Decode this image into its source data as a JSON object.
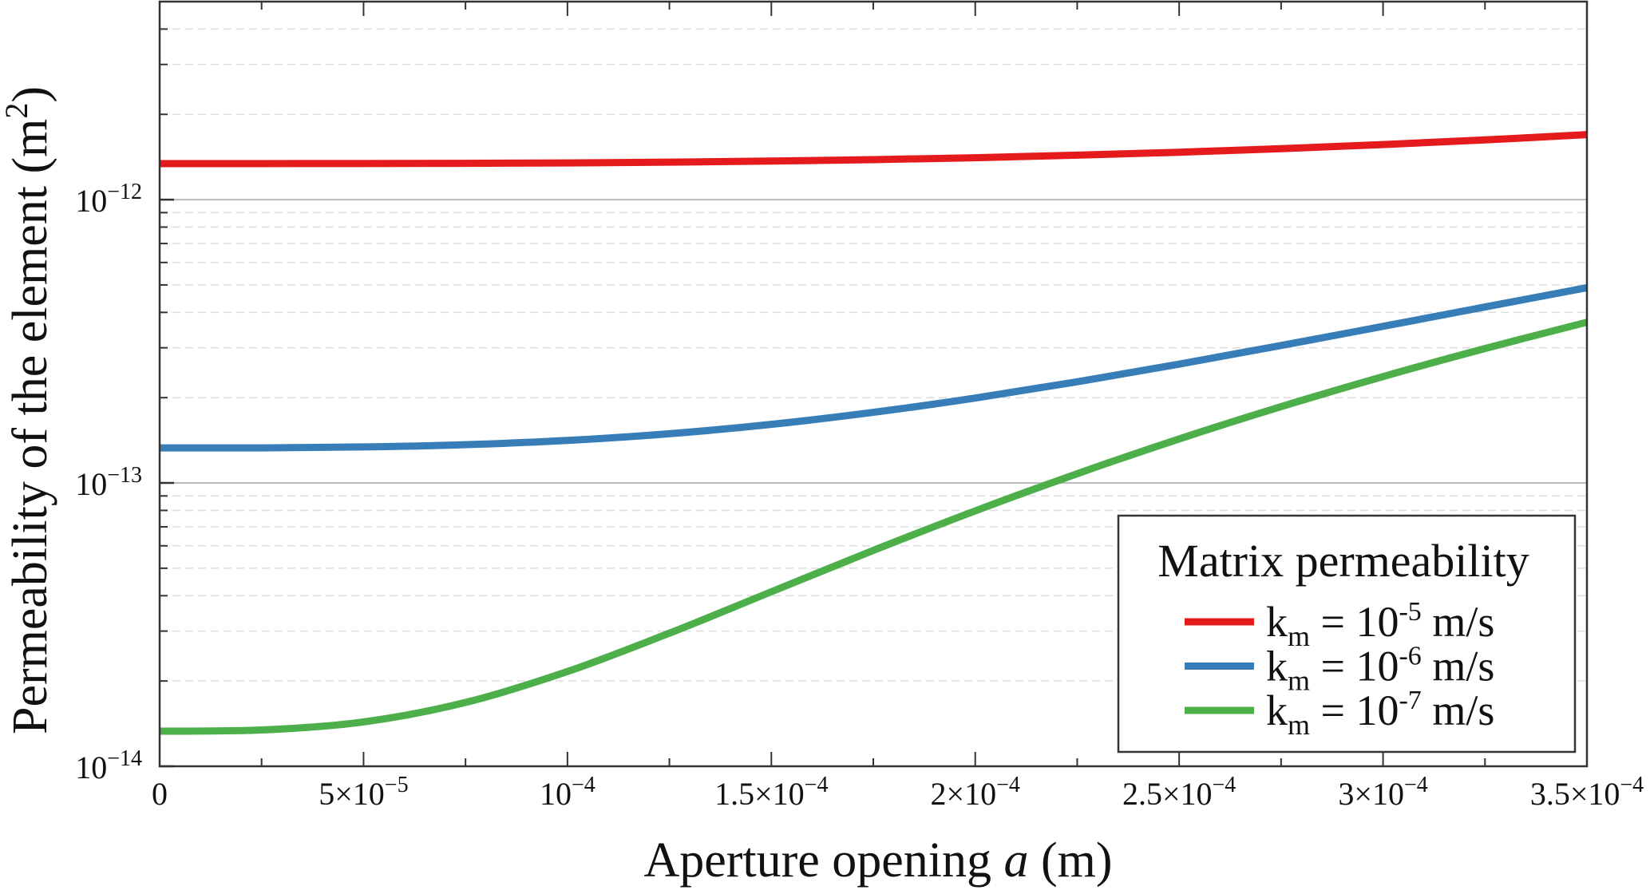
{
  "chart_data": {
    "type": "line",
    "title": "",
    "xlabel": {
      "prefix": "Aperture opening ",
      "variable": "a",
      "suffix": " (m)"
    },
    "ylabel": {
      "text": "Permeability of the element (m",
      "sup": "2",
      "close": ")"
    },
    "xlim": [
      0,
      0.00035
    ],
    "ylim": [
      1e-14,
      5e-12
    ],
    "yscale": "log",
    "grid": true,
    "x_ticks": [
      {
        "value": 0,
        "mantissa": "0",
        "exp": ""
      },
      {
        "value": 5e-05,
        "mantissa": "5×10",
        "exp": "−5"
      },
      {
        "value": 0.0001,
        "mantissa": "10",
        "exp": "−4"
      },
      {
        "value": 0.00015,
        "mantissa": "1.5×10",
        "exp": "−4"
      },
      {
        "value": 0.0002,
        "mantissa": "2×10",
        "exp": "−4"
      },
      {
        "value": 0.00025,
        "mantissa": "2.5×10",
        "exp": "−4"
      },
      {
        "value": 0.0003,
        "mantissa": "3×10",
        "exp": "−4"
      },
      {
        "value": 0.00035,
        "mantissa": "3.5×10",
        "exp": "−4"
      }
    ],
    "y_ticks": [
      {
        "value": 1e-14,
        "mantissa": "10",
        "exp": "−14"
      },
      {
        "value": 1e-13,
        "mantissa": "10",
        "exp": "−13"
      },
      {
        "value": 1e-12,
        "mantissa": "10",
        "exp": "−12"
      }
    ],
    "x": [
      0,
      2.5e-05,
      5e-05,
      7.5e-05,
      0.0001,
      0.000125,
      0.00015,
      0.000175,
      0.0002,
      0.000225,
      0.00025,
      0.000275,
      0.0003,
      0.000325,
      0.00035
    ],
    "series": [
      {
        "name": "km = 10^-5 m/s",
        "sub": "m",
        "exp": "-5",
        "color": "#e41a1c",
        "values": [
          1.34e-12,
          1.34e-12,
          1.341e-12,
          1.3435e-12,
          1.348e-12,
          1.356e-12,
          1.368e-12,
          1.384e-12,
          1.406e-12,
          1.435e-12,
          1.47e-12,
          1.513e-12,
          1.564e-12,
          1.625e-12,
          1.696e-12
        ]
      },
      {
        "name": "km = 10^-6 m/s",
        "sub": "m",
        "exp": "-6",
        "color": "#377eb8",
        "values": [
          1.33e-13,
          1.33e-13,
          1.34e-13,
          1.365e-13,
          1.413e-13,
          1.492e-13,
          1.61e-13,
          1.775e-13,
          1.994e-13,
          2.275e-13,
          2.627e-13,
          3.056e-13,
          3.571e-13,
          4.179e-13,
          4.889e-13
        ]
      },
      {
        "name": "km = 10^-7 m/s",
        "sub": "m",
        "exp": "-7",
        "color": "#4daf4a",
        "values": [
          1.33e-14,
          1.343e-14,
          1.434e-14,
          1.68e-14,
          2.16e-14,
          2.95e-14,
          4.13e-14,
          5.78e-14,
          7.97e-14,
          1.078e-13,
          1.43e-13,
          1.859e-13,
          2.374e-13,
          2.982e-13,
          3.692e-13
        ]
      }
    ],
    "legend": {
      "title": "Matrix permeability",
      "placement": "bottom-right",
      "k": "k",
      "eq": " = 10",
      "unit": " m/s"
    }
  }
}
